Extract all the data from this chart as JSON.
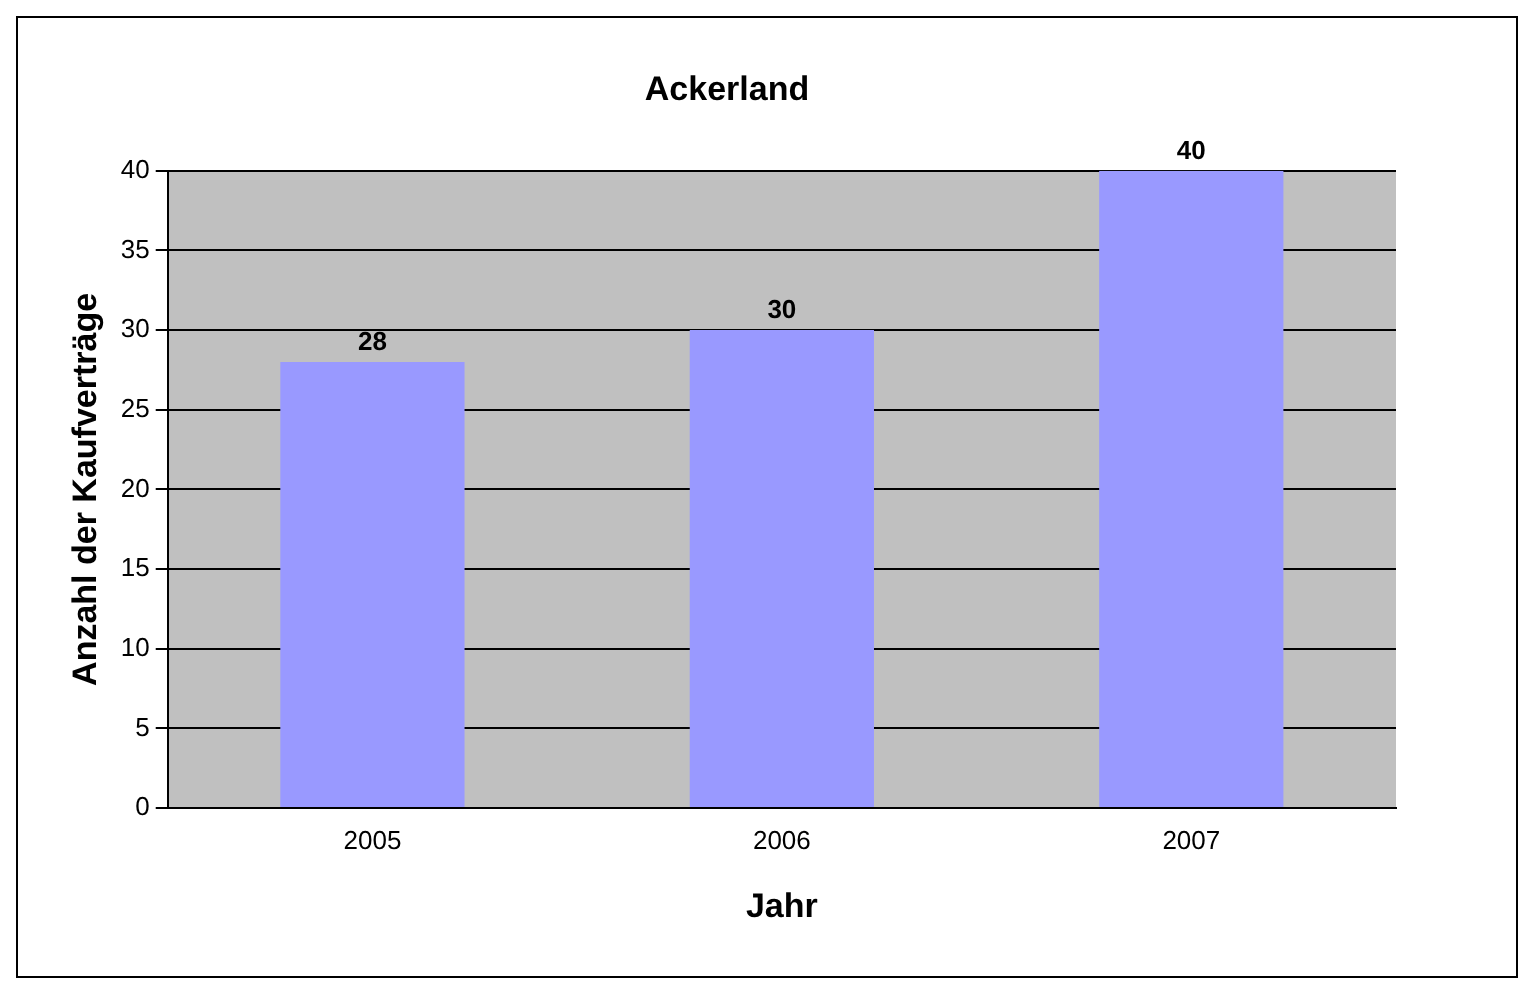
{
  "chart_data": {
    "type": "bar",
    "title": "Ackerland",
    "xlabel": "Jahr",
    "ylabel": "Anzahl der Kaufverträge",
    "categories": [
      "2005",
      "2006",
      "2007"
    ],
    "values": [
      28,
      30,
      40
    ],
    "color": "#9999ff",
    "ylim": [
      0,
      40
    ],
    "yticks": [
      0,
      5,
      10,
      15,
      20,
      25,
      30,
      35,
      40
    ],
    "grid": "y",
    "data_labels": true
  }
}
